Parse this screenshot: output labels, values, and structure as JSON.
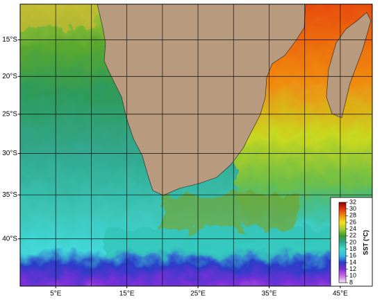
{
  "map": {
    "xlim": [
      0,
      49.5
    ],
    "ylim": [
      -45,
      -10
    ],
    "xticks": [
      {
        "value": 5,
        "label": "5°E"
      },
      {
        "value": 15,
        "label": "15°E"
      },
      {
        "value": 25,
        "label": "25°E"
      },
      {
        "value": 35,
        "label": "35°E"
      },
      {
        "value": 45,
        "label": "45°E"
      }
    ],
    "yticks": [
      {
        "value": -15,
        "label": "15°S"
      },
      {
        "value": -20,
        "label": "20°S"
      },
      {
        "value": -25,
        "label": "25°S"
      },
      {
        "value": -30,
        "label": "30°S"
      },
      {
        "value": -35,
        "label": "35°S"
      },
      {
        "value": -40,
        "label": "40°S"
      }
    ],
    "xgrid": [
      5,
      10,
      15,
      20,
      25,
      30,
      35,
      40,
      45
    ],
    "ygrid": [
      -15,
      -20,
      -25,
      -30,
      -35,
      -40
    ],
    "colorbar": {
      "label": "SST (°C)",
      "lim": [
        8,
        32
      ],
      "ticks": [
        8,
        10,
        12,
        14,
        16,
        18,
        20,
        22,
        24,
        26,
        28,
        30,
        32
      ]
    }
  }
}
